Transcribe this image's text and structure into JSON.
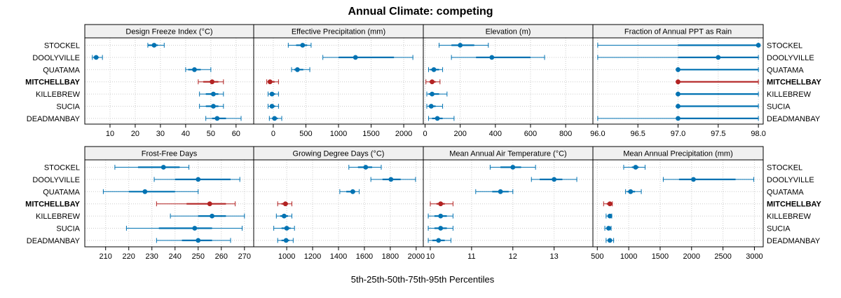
{
  "chart_data": {
    "type": "dotplot-interval",
    "title": "Annual Climate: competing",
    "xlabel": "5th-25th-50th-75th-95th Percentiles",
    "sites": [
      "STOCKEL",
      "DOOLYVILLE",
      "QUATAMA",
      "MITCHELLBAY",
      "KILLEBREW",
      "SUCIA",
      "DEADMANBAY"
    ],
    "highlight_site": "MITCHELLBAY",
    "colors": {
      "normal": "#0072B2",
      "highlight": "#B22222",
      "strip": "#f0f0f0",
      "grid": "#cccccc"
    },
    "panels": [
      {
        "name": "Design Freeze Index (°C)",
        "xlim": [
          0,
          67
        ],
        "ticks": [
          10,
          20,
          30,
          40,
          50,
          60
        ],
        "data": [
          [
            25,
            25,
            27.5,
            29,
            31.5
          ],
          [
            3,
            3.5,
            4.5,
            5.5,
            7
          ],
          [
            40,
            41,
            43.5,
            46,
            50
          ],
          [
            45,
            47,
            50.5,
            53,
            55
          ],
          [
            45.5,
            48,
            51,
            53,
            55
          ],
          [
            45.5,
            48,
            51,
            53,
            55
          ],
          [
            48,
            50.5,
            52.5,
            56,
            62
          ]
        ]
      },
      {
        "name": "Effective Precipitation (mm)",
        "xlim": [
          -300,
          2300
        ],
        "ticks": [
          0,
          500,
          1000,
          1500,
          2000
        ],
        "data": [
          [
            230,
            350,
            450,
            520,
            580
          ],
          [
            760,
            1000,
            1260,
            1850,
            2140
          ],
          [
            280,
            320,
            370,
            460,
            560
          ],
          [
            -100,
            -70,
            -50,
            20,
            80
          ],
          [
            -80,
            -50,
            -20,
            30,
            80
          ],
          [
            -80,
            -50,
            -20,
            30,
            80
          ],
          [
            -60,
            -20,
            20,
            70,
            130
          ]
        ]
      },
      {
        "name": "Elevation (m)",
        "xlim": [
          -10,
          955
        ],
        "ticks": [
          0,
          200,
          400,
          600,
          800
        ],
        "data": [
          [
            80,
            150,
            200,
            280,
            360
          ],
          [
            150,
            290,
            380,
            600,
            680
          ],
          [
            20,
            30,
            50,
            80,
            100
          ],
          [
            5,
            25,
            40,
            60,
            85
          ],
          [
            10,
            20,
            40,
            80,
            125
          ],
          [
            10,
            20,
            35,
            60,
            100
          ],
          [
            20,
            40,
            70,
            100,
            165
          ]
        ]
      },
      {
        "name": "Fraction of Annual PPT as Rain",
        "xlim": [
          95.94,
          98.06
        ],
        "ticks": [
          96.0,
          96.5,
          97.0,
          97.5,
          98.0
        ],
        "data": [
          [
            96,
            97,
            98,
            98,
            98
          ],
          [
            96,
            97,
            97.5,
            98,
            98
          ],
          [
            97,
            97,
            97,
            98,
            98
          ],
          [
            97,
            97,
            97,
            98,
            98
          ],
          [
            97,
            97,
            97,
            98,
            98
          ],
          [
            97,
            97,
            97,
            98,
            98
          ],
          [
            96,
            97,
            97,
            98,
            98
          ]
        ]
      },
      {
        "name": "Frost-Free Days",
        "xlim": [
          201,
          274
        ],
        "ticks": [
          210,
          220,
          230,
          240,
          250,
          260,
          270
        ],
        "data": [
          [
            214,
            224,
            235,
            242,
            246
          ],
          [
            231,
            240,
            250,
            264,
            268
          ],
          [
            209,
            220,
            227,
            240,
            250
          ],
          [
            232,
            245,
            255,
            262,
            266
          ],
          [
            238,
            250,
            256,
            262,
            270
          ],
          [
            219,
            233,
            248.5,
            256,
            269
          ],
          [
            232,
            243,
            250,
            256,
            264
          ]
        ]
      },
      {
        "name": "Growing Degree Days (°C)",
        "xlim": [
          745,
          2055
        ],
        "ticks": [
          1000,
          1200,
          1400,
          1600,
          1800,
          2000
        ],
        "data": [
          [
            1480,
            1550,
            1610,
            1660,
            1730
          ],
          [
            1650,
            1740,
            1805,
            1880,
            1995
          ],
          [
            1410,
            1460,
            1510,
            1530,
            1560
          ],
          [
            930,
            960,
            990,
            1010,
            1040
          ],
          [
            920,
            950,
            980,
            1010,
            1040
          ],
          [
            900,
            960,
            1000,
            1030,
            1060
          ],
          [
            930,
            960,
            995,
            1020,
            1050
          ]
        ]
      },
      {
        "name": "Mean Annual Air Temperature (°C)",
        "xlim": [
          9.83,
          13.94
        ],
        "ticks": [
          10,
          11,
          12,
          13
        ],
        "data": [
          [
            11.45,
            11.7,
            12.0,
            12.2,
            12.55
          ],
          [
            12.45,
            12.65,
            13.0,
            13.2,
            13.55
          ],
          [
            11.1,
            11.5,
            11.7,
            11.9,
            12.0
          ],
          [
            10.0,
            10.15,
            10.25,
            10.35,
            10.55
          ],
          [
            9.95,
            10.1,
            10.25,
            10.4,
            10.55
          ],
          [
            9.95,
            10.1,
            10.25,
            10.4,
            10.55
          ],
          [
            9.95,
            10.05,
            10.2,
            10.35,
            10.5
          ]
        ]
      },
      {
        "name": "Mean Annual Precipitation (mm)",
        "xlim": [
          430,
          3140
        ],
        "ticks": [
          500,
          1000,
          1500,
          2000,
          2500,
          3000
        ],
        "data": [
          [
            920,
            1050,
            1110,
            1160,
            1260
          ],
          [
            1550,
            1800,
            2030,
            2700,
            2990
          ],
          [
            950,
            980,
            1030,
            1100,
            1200
          ],
          [
            600,
            650,
            700,
            720,
            740
          ],
          [
            640,
            670,
            700,
            710,
            730
          ],
          [
            620,
            650,
            680,
            700,
            720
          ],
          [
            640,
            670,
            700,
            730,
            760
          ]
        ]
      }
    ]
  }
}
